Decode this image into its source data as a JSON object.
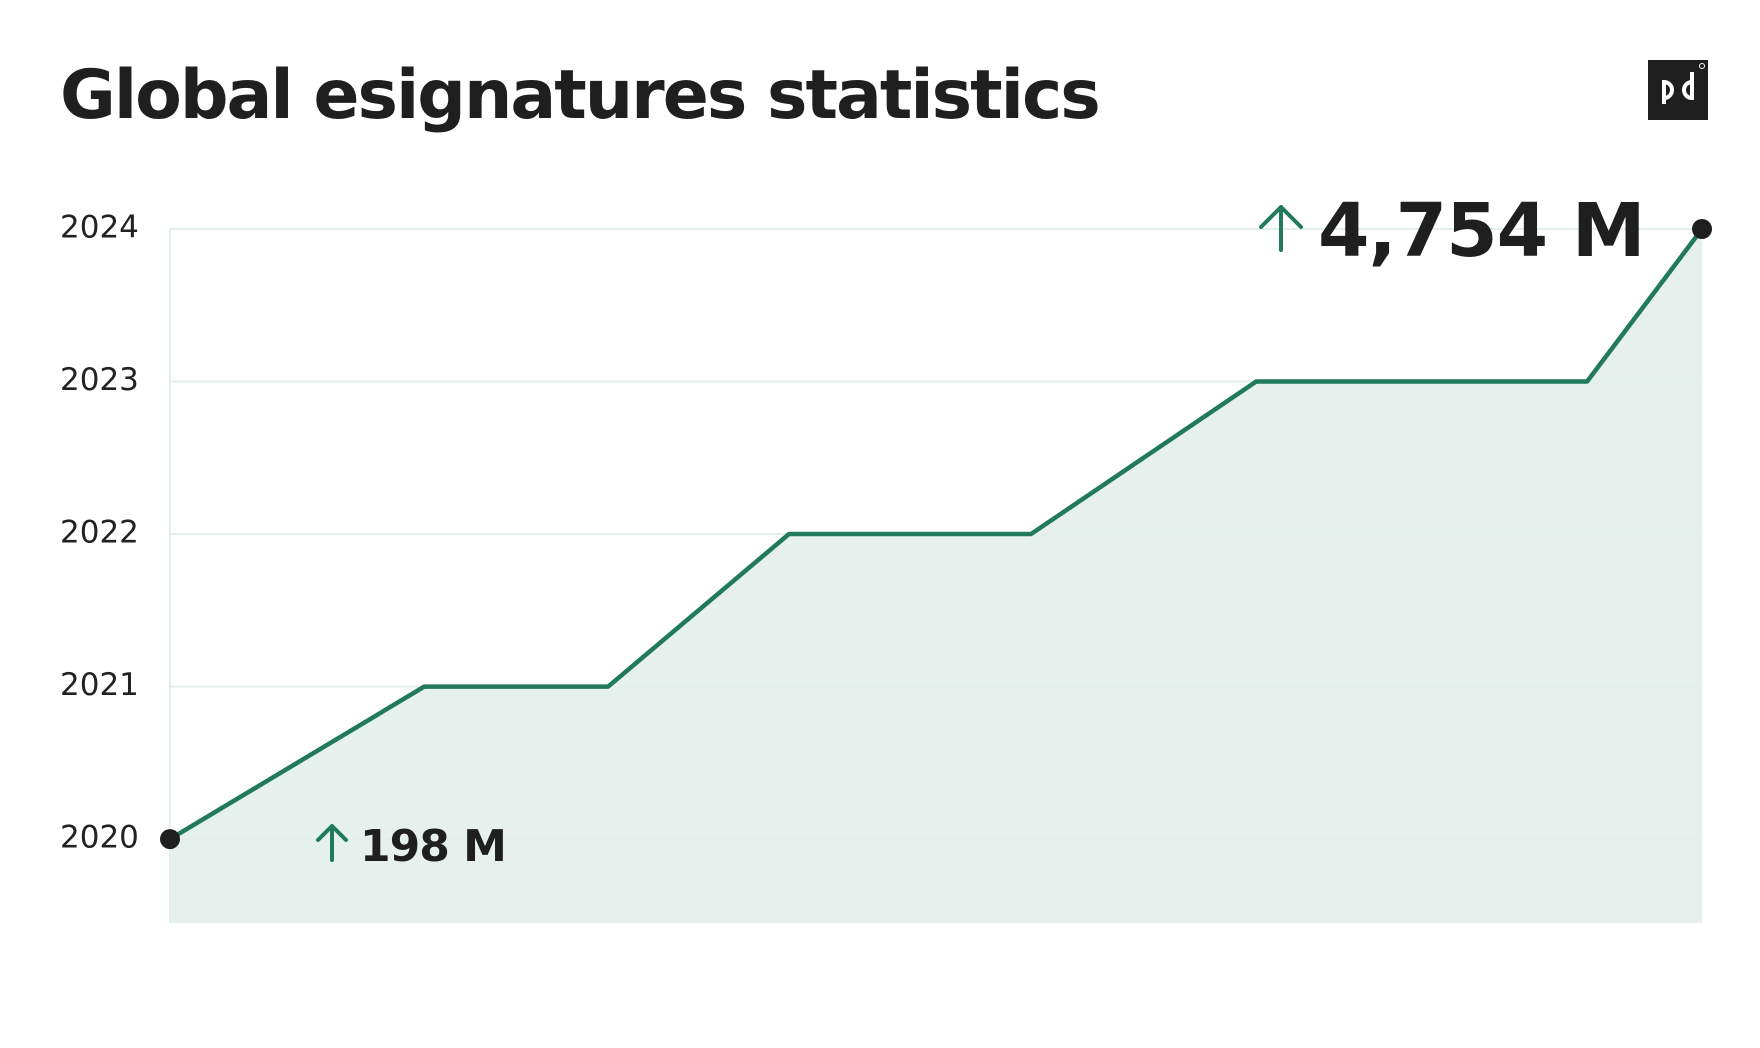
{
  "chart_data": {
    "type": "line",
    "title": "Global esignatures statistics",
    "x": [
      0,
      16.6,
      28.6,
      40.4,
      56.2,
      70.9,
      92.5,
      100
    ],
    "xlim": [
      0,
      100
    ],
    "values": [
      2020,
      2021,
      2021,
      2022,
      2022,
      2023,
      2023,
      2024
    ],
    "color": "#217a5a",
    "area_color": "#e6f0ec",
    "ylim": [
      2019.45,
      2024
    ],
    "yticks": [
      2020,
      2021,
      2022,
      2023,
      2024
    ],
    "grid": true,
    "annotations": [
      {
        "text": "198 M"
      },
      {
        "text": "4,754 M"
      }
    ]
  }
}
